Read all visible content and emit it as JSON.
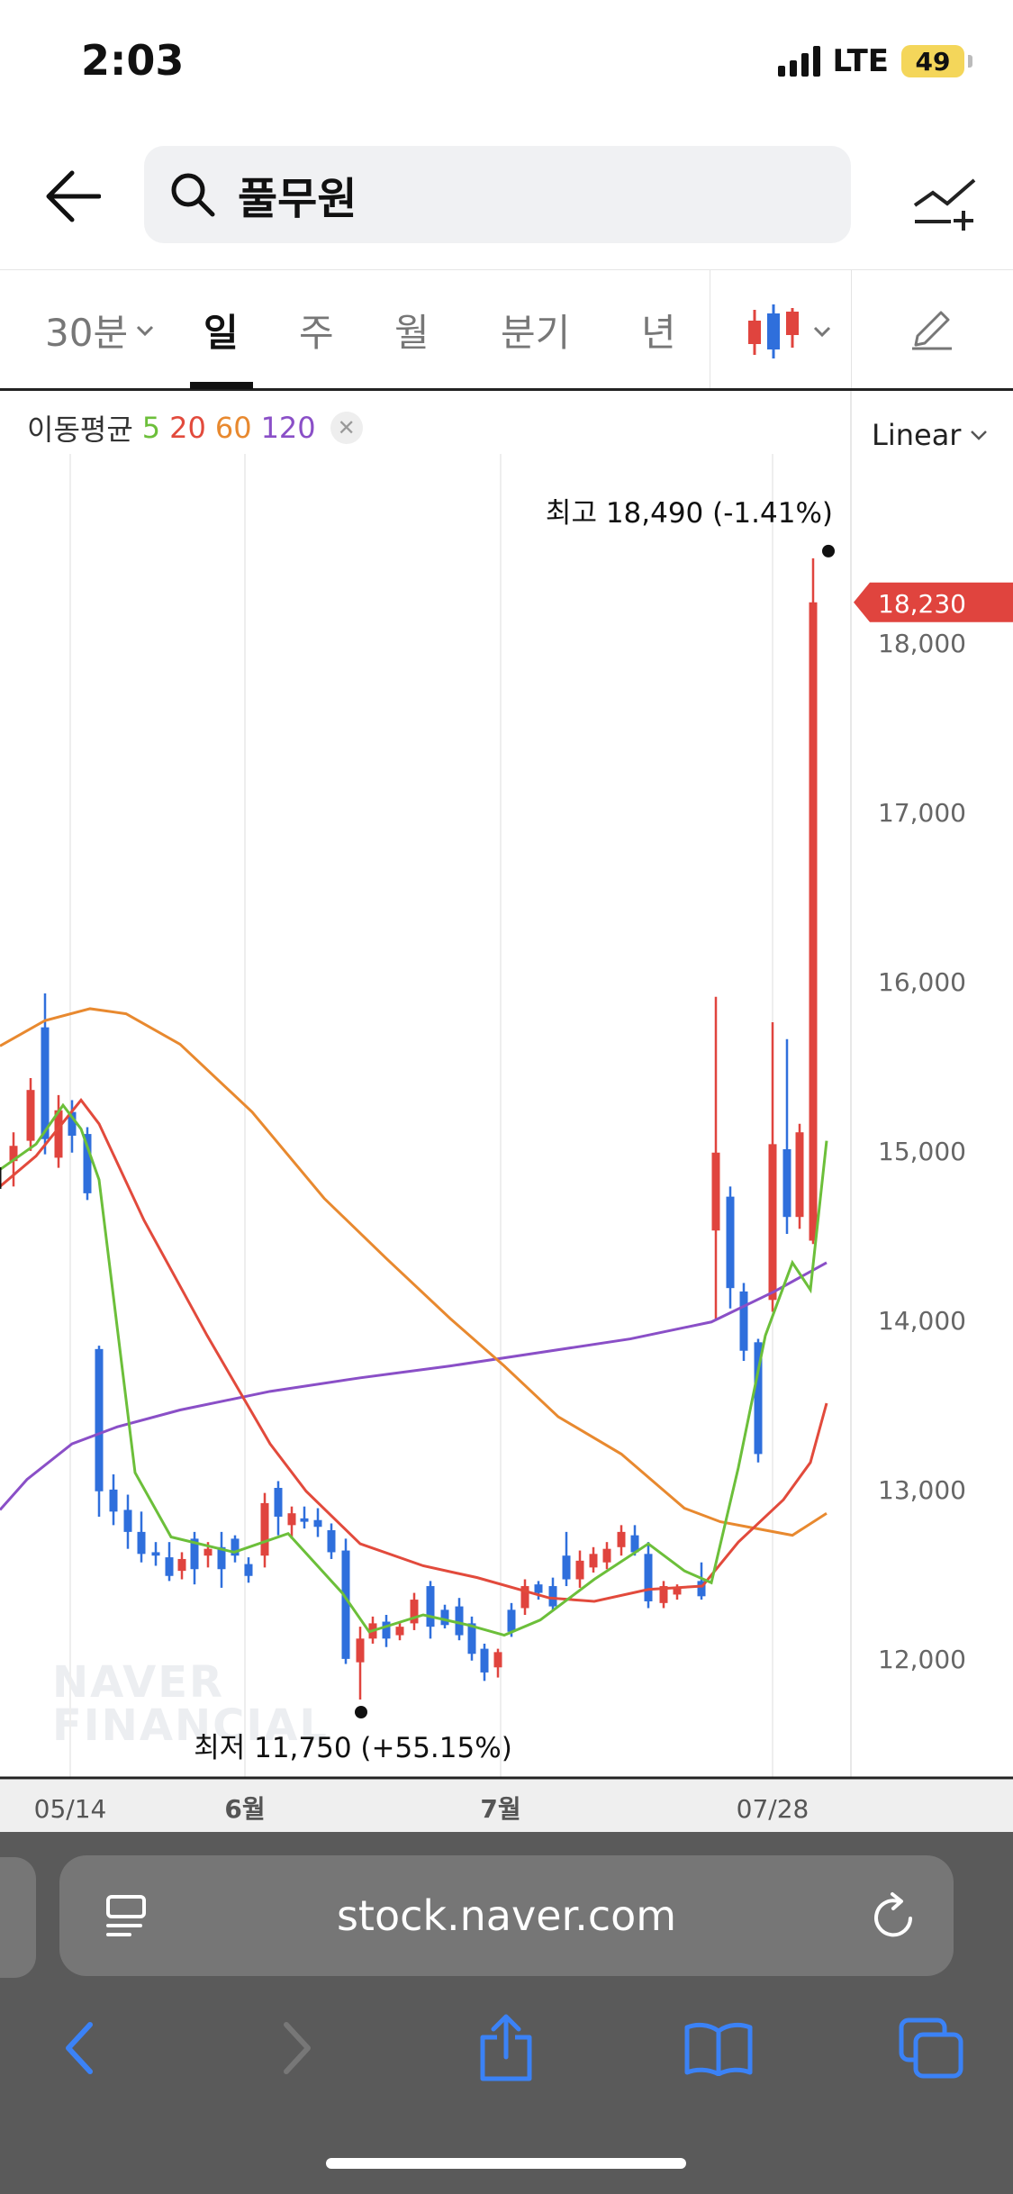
{
  "status": {
    "time": "2:03",
    "network": "LTE",
    "battery": "49"
  },
  "search": {
    "query": "풀무원"
  },
  "tabs": [
    {
      "label": "30분",
      "active": false
    },
    {
      "label": "일",
      "active": true
    },
    {
      "label": "주",
      "active": false
    },
    {
      "label": "월",
      "active": false
    },
    {
      "label": "분기",
      "active": false
    },
    {
      "label": "년",
      "active": false
    }
  ],
  "legend": {
    "label": "이동평균",
    "ma5": "5",
    "ma20": "20",
    "ma60": "60",
    "ma120": "120"
  },
  "scale": {
    "label": "Linear"
  },
  "chart_data": {
    "type": "candlestick",
    "high_label": "최고 18,490 (-1.41%)",
    "low_label": "최저 11,750 (+55.15%)",
    "current_price": "18,230",
    "y_ticks": [
      "18,000",
      "17,000",
      "16,000",
      "15,000",
      "14,000",
      "13,000",
      "12,000"
    ],
    "x_ticks": [
      "05/14",
      "6월",
      "7월",
      "07/28"
    ],
    "ylim": [
      11300,
      18900
    ],
    "colors": {
      "up": "#e0443e",
      "down": "#2f6fdc",
      "ma5": "#6cbf3a",
      "ma20": "#e24a3c",
      "ma60": "#e8892f",
      "ma120": "#8a4fc7"
    }
  },
  "watermark": {
    "line1": "NAVER",
    "line2": "FINANCIAL"
  },
  "browser": {
    "url": "stock.naver.com"
  }
}
